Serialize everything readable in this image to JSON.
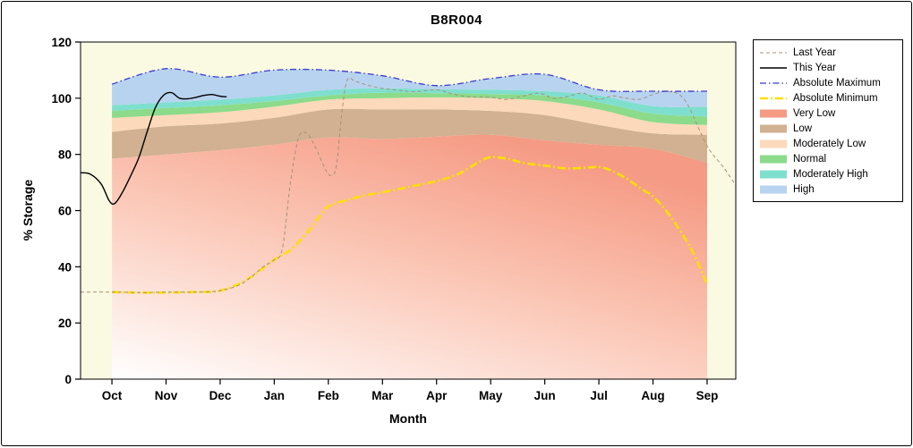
{
  "colors": {
    "plot_bg": "#fafae2",
    "figure_bg": "#ffffff",
    "axis": "#000000"
  },
  "y_axis": {
    "label": "% Storage",
    "ticks": [
      0,
      20,
      40,
      60,
      80,
      100,
      120
    ]
  },
  "x_axis": {
    "label": "Month"
  },
  "legend": {
    "items": [
      {
        "label": "Last Year",
        "swatch": "line"
      },
      {
        "label": "This Year",
        "swatch": "line"
      },
      {
        "label": "Absolute Maximum",
        "swatch": "line"
      },
      {
        "label": "Absolute Minimum",
        "swatch": "line"
      },
      {
        "label": "Very Low",
        "swatch": "fill"
      },
      {
        "label": "Low",
        "swatch": "fill"
      },
      {
        "label": "Moderately Low",
        "swatch": "fill"
      },
      {
        "label": "Normal",
        "swatch": "fill"
      },
      {
        "label": "Moderately High",
        "swatch": "fill"
      },
      {
        "label": "High",
        "swatch": "fill"
      }
    ]
  },
  "chart_data": {
    "type": "area",
    "title": "B8R004",
    "xlabel": "Month",
    "ylabel": "% Storage",
    "ylim": [
      0,
      120
    ],
    "yticks": [
      0,
      20,
      40,
      60,
      80,
      100,
      120
    ],
    "categories": [
      "Oct",
      "Nov",
      "Dec",
      "Jan",
      "Feb",
      "Mar",
      "Apr",
      "May",
      "Jun",
      "Jul",
      "Aug",
      "Sep"
    ],
    "x_range_months": [
      -0.58,
      11.53
    ],
    "bands": [
      {
        "name": "Very Low",
        "color": "#f59a84",
        "gradient_from": "#ffffff",
        "gradient_mid": "#fbc7b6",
        "top": [
          78.5,
          80,
          81.5,
          83.5,
          86,
          85.5,
          86.3,
          87,
          85,
          83.4,
          82,
          77
        ]
      },
      {
        "name": "Low",
        "color": "#d1b191",
        "top": [
          88,
          90,
          91,
          93,
          96,
          96,
          96,
          95.5,
          94,
          90.5,
          87.5,
          87
        ]
      },
      {
        "name": "Moderately Low",
        "color": "#fbd9ba",
        "top": [
          93,
          94,
          95,
          97,
          99.5,
          100,
          100.3,
          100,
          99,
          96,
          91.5,
          90.5
        ]
      },
      {
        "name": "Normal",
        "color": "#8bdb8b",
        "top": [
          95.5,
          96.5,
          97.5,
          99,
          101,
          102,
          101.8,
          101.5,
          101,
          98.5,
          94.5,
          93.5
        ]
      },
      {
        "name": "Moderately High",
        "color": "#7fdfcf",
        "top": [
          97.5,
          98.5,
          99.5,
          101,
          103,
          103.5,
          103.2,
          103,
          102.5,
          101,
          97.2,
          97
        ]
      },
      {
        "name": "High",
        "color": "#b7d3ef",
        "top": [
          105,
          110.5,
          107.5,
          110,
          110,
          108,
          104.5,
          107,
          108.5,
          103,
          102.5,
          102.5
        ]
      }
    ],
    "draw_order": [
      "Absolute Minimum",
      "Last Year",
      "This Year",
      "Absolute Maximum"
    ],
    "series": [
      {
        "name": "Last Year",
        "color": "#a5907c",
        "width": 1,
        "dash": "4 3",
        "points": [
          [
            -0.58,
            31
          ],
          [
            0,
            31
          ],
          [
            0.6,
            30.8
          ],
          [
            1,
            31
          ],
          [
            1.6,
            31
          ],
          [
            2,
            31.5
          ],
          [
            2.4,
            34
          ],
          [
            2.8,
            40
          ],
          [
            3,
            42.5
          ],
          [
            3.15,
            46.5
          ],
          [
            3.3,
            70
          ],
          [
            3.45,
            86
          ],
          [
            3.6,
            87.5
          ],
          [
            3.75,
            83
          ],
          [
            3.95,
            74.5
          ],
          [
            4.05,
            72.5
          ],
          [
            4.15,
            76
          ],
          [
            4.25,
            95
          ],
          [
            4.35,
            106.5
          ],
          [
            4.5,
            106
          ],
          [
            4.75,
            104.5
          ],
          [
            5,
            103.5
          ],
          [
            5.3,
            102.8
          ],
          [
            5.6,
            102.3
          ],
          [
            6,
            103
          ],
          [
            6.3,
            101.5
          ],
          [
            6.6,
            100.5
          ],
          [
            7,
            100.3
          ],
          [
            7.3,
            99.6
          ],
          [
            7.6,
            100.8
          ],
          [
            7.9,
            101.8
          ],
          [
            8.15,
            100
          ],
          [
            8.4,
            100.5
          ],
          [
            8.7,
            101.8
          ],
          [
            9,
            99.6
          ],
          [
            9.25,
            100.8
          ],
          [
            9.5,
            100
          ],
          [
            9.75,
            99.6
          ],
          [
            10,
            101.3
          ],
          [
            10.3,
            102.4
          ],
          [
            10.6,
            99
          ],
          [
            11,
            83
          ],
          [
            11.3,
            75.5
          ],
          [
            11.53,
            69
          ]
        ]
      },
      {
        "name": "This Year",
        "color": "#000000",
        "width": 1.4,
        "dash": null,
        "points": [
          [
            -0.58,
            73.5
          ],
          [
            -0.4,
            73
          ],
          [
            -0.2,
            69.5
          ],
          [
            -0.05,
            63.5
          ],
          [
            0.05,
            62.5
          ],
          [
            0.18,
            66
          ],
          [
            0.35,
            72.5
          ],
          [
            0.5,
            79
          ],
          [
            0.65,
            88
          ],
          [
            0.8,
            96.5
          ],
          [
            0.95,
            101
          ],
          [
            1.1,
            102
          ],
          [
            1.25,
            100
          ],
          [
            1.4,
            99.8
          ],
          [
            1.55,
            100.3
          ],
          [
            1.7,
            101
          ],
          [
            1.85,
            101.3
          ],
          [
            2,
            100.7
          ],
          [
            2.12,
            100.5
          ]
        ]
      },
      {
        "name": "Absolute Maximum",
        "color": "#3b3bcf",
        "width": 1.3,
        "dash": "7 3 1.5 3",
        "points": [
          [
            0,
            105
          ],
          [
            1,
            110.5
          ],
          [
            2,
            107.5
          ],
          [
            3,
            110
          ],
          [
            4,
            110
          ],
          [
            5,
            108
          ],
          [
            6,
            104.5
          ],
          [
            7,
            107
          ],
          [
            8,
            108.5
          ],
          [
            9,
            103
          ],
          [
            10,
            102.5
          ],
          [
            11,
            102.5
          ]
        ]
      },
      {
        "name": "Absolute Minimum",
        "color": "#ffdf00",
        "width": 2.6,
        "dash": "9 3 2 3",
        "points": [
          [
            0,
            31
          ],
          [
            0.5,
            30.8
          ],
          [
            1,
            30.8
          ],
          [
            1.5,
            31
          ],
          [
            2,
            31.5
          ],
          [
            2.5,
            35.5
          ],
          [
            3,
            42.5
          ],
          [
            3.3,
            46
          ],
          [
            3.6,
            52
          ],
          [
            3.8,
            57
          ],
          [
            4,
            61.5
          ],
          [
            4.3,
            63.5
          ],
          [
            4.7,
            65.5
          ],
          [
            5,
            66.5
          ],
          [
            5.5,
            68.5
          ],
          [
            6,
            70.5
          ],
          [
            6.4,
            73
          ],
          [
            6.8,
            77.5
          ],
          [
            7,
            79
          ],
          [
            7.3,
            78.5
          ],
          [
            7.6,
            77
          ],
          [
            8,
            76
          ],
          [
            8.4,
            75
          ],
          [
            8.8,
            75.3
          ],
          [
            9,
            75.5
          ],
          [
            9.2,
            74.5
          ],
          [
            9.5,
            71.5
          ],
          [
            9.8,
            67.5
          ],
          [
            10,
            65
          ],
          [
            10.3,
            58.5
          ],
          [
            10.7,
            46.5
          ],
          [
            11,
            34
          ]
        ]
      }
    ]
  }
}
